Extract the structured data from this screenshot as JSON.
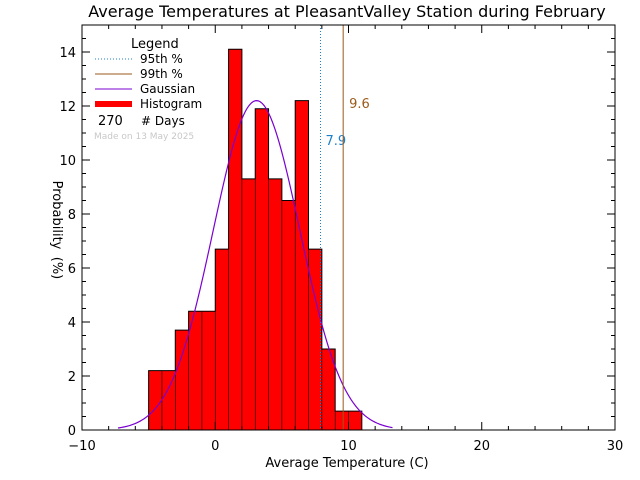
{
  "chart_data": {
    "type": "bar",
    "title": "Average Temperatures at PleasantValley Station during February",
    "xlabel": "Average Temperature (C)",
    "ylabel_top": "Probability",
    "ylabel_bottom": "(%)",
    "xlim": [
      -10,
      30
    ],
    "ylim": [
      0,
      15
    ],
    "x_ticks": [
      -10,
      0,
      10,
      20,
      30
    ],
    "y_ticks": [
      0,
      2,
      4,
      6,
      8,
      10,
      12,
      14
    ],
    "bin_width": 1,
    "bins": [
      {
        "x0": -5,
        "value": 2.2
      },
      {
        "x0": -4,
        "value": 2.2
      },
      {
        "x0": -3,
        "value": 3.7
      },
      {
        "x0": -2,
        "value": 4.4
      },
      {
        "x0": -1,
        "value": 4.4
      },
      {
        "x0": 0,
        "value": 6.7
      },
      {
        "x0": 1,
        "value": 14.1
      },
      {
        "x0": 2,
        "value": 9.3
      },
      {
        "x0": 3,
        "value": 11.9
      },
      {
        "x0": 4,
        "value": 9.3
      },
      {
        "x0": 5,
        "value": 8.5
      },
      {
        "x0": 6,
        "value": 12.2
      },
      {
        "x0": 7,
        "value": 6.7
      },
      {
        "x0": 8,
        "value": 3.0
      },
      {
        "x0": 9,
        "value": 0.7
      },
      {
        "x0": 10,
        "value": 0.7
      }
    ],
    "gaussian": {
      "mean": 3.1,
      "sd": 3.25,
      "peak": 12.2,
      "x_range": [
        -7.3,
        13.3
      ]
    },
    "percentiles": [
      {
        "name": "95th %",
        "value": 7.9,
        "label": "7.9",
        "color": "#1e7fc9"
      },
      {
        "name": "99th %",
        "value": 9.6,
        "label": "9.6",
        "color": "#9a5a1a"
      }
    ],
    "legend": {
      "title": "Legend",
      "entries": [
        {
          "label": "95th %",
          "color": "#1e7fc9",
          "style": "dotted"
        },
        {
          "label": "99th %",
          "color": "#9a5a1a",
          "style": "solid"
        },
        {
          "label": "Gaussian",
          "color": "#7a00d0",
          "style": "solid"
        },
        {
          "label": "Histogram",
          "color": "#ff0000",
          "style": "thick"
        }
      ],
      "count": "270",
      "count_label": "# Days",
      "made_on": "Made on 13 May 2025",
      "position": "top-left"
    },
    "colors": {
      "histogram": "#ff0000",
      "gaussian": "#7a00d0"
    }
  }
}
